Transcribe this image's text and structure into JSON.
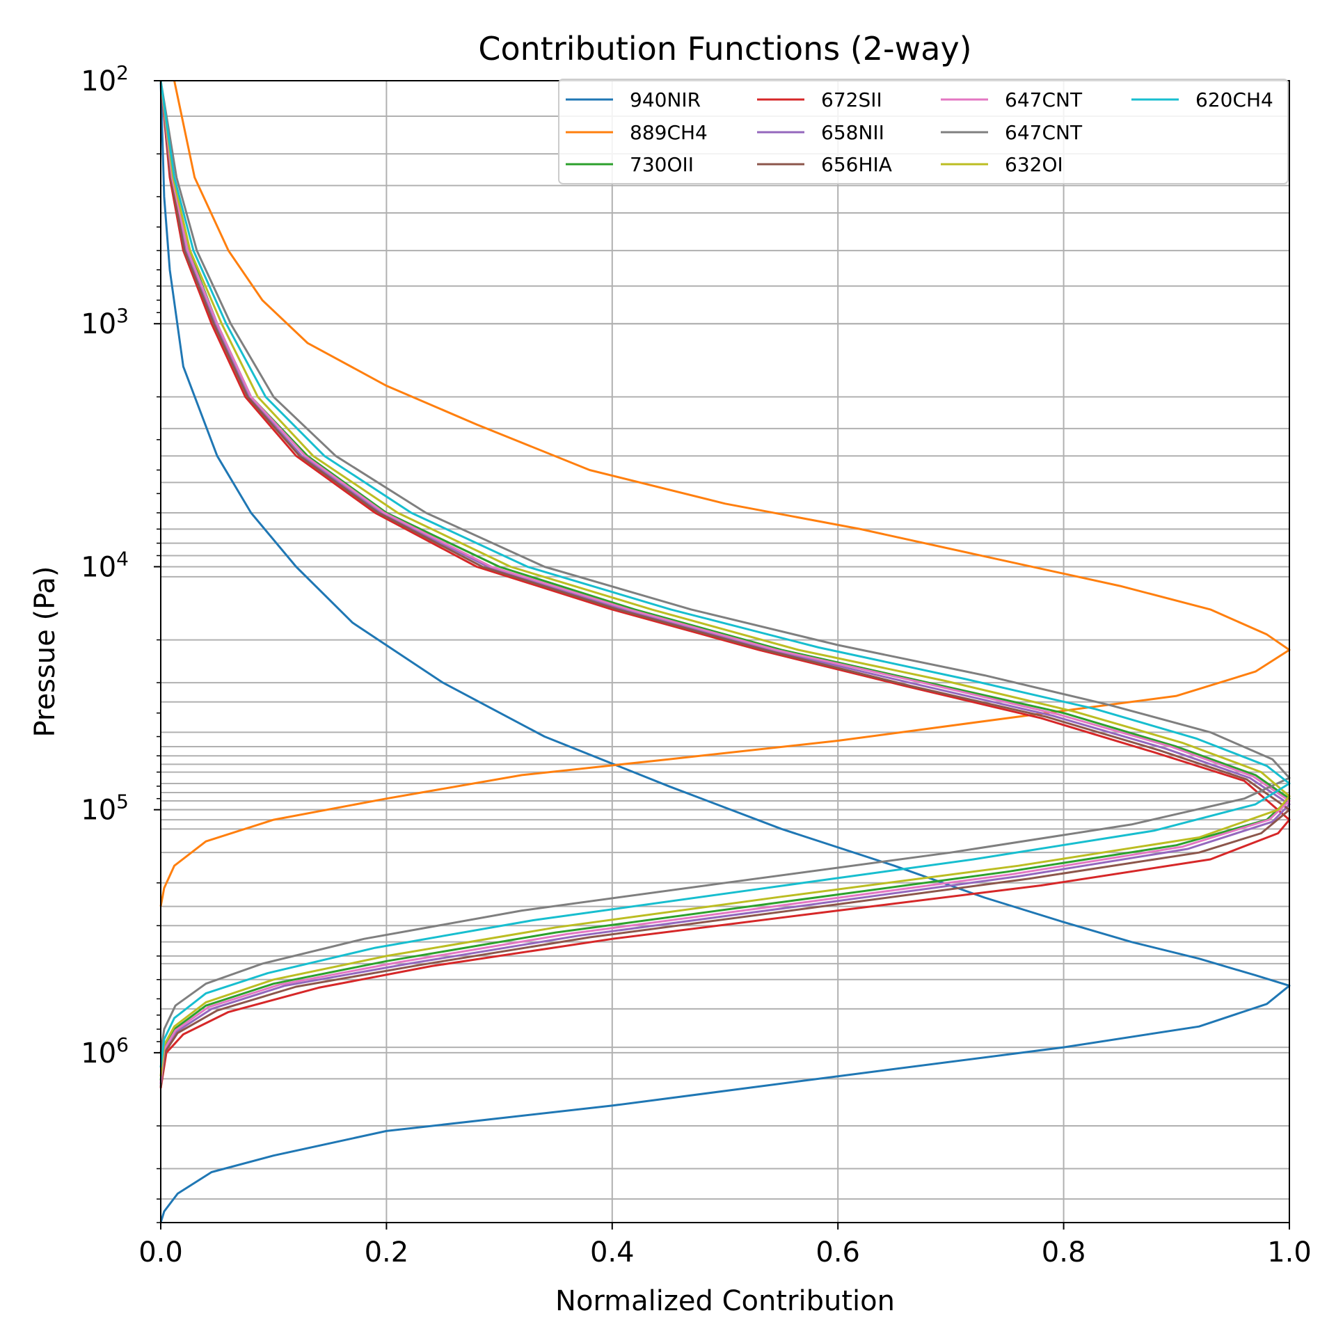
{
  "chart_data": {
    "type": "line",
    "title": "Contribution Functions (2-way)",
    "xlabel": "Normalized Contribution",
    "ylabel": "Pressue (Pa)",
    "xlim": [
      0.0,
      1.0
    ],
    "ylim": [
      100,
      5000000
    ],
    "yscale": "log",
    "y_inverted": true,
    "grid": true,
    "legend_position": "top-right",
    "legend_columns": 4,
    "x_ticks": [
      "0.0",
      "0.2",
      "0.4",
      "0.6",
      "0.8",
      "1.0"
    ],
    "y_ticks": [
      {
        "base": "10",
        "exp": "2",
        "value": 100
      },
      {
        "base": "10",
        "exp": "3",
        "value": 1000
      },
      {
        "base": "10",
        "exp": "4",
        "value": 10000
      },
      {
        "base": "10",
        "exp": "5",
        "value": 100000
      },
      {
        "base": "10",
        "exp": "6",
        "value": 1000000
      }
    ],
    "level_gridlines": [
      140,
      200,
      270,
      350,
      500,
      700,
      1000,
      2000,
      2700,
      3500,
      4500,
      6000,
      7000,
      8000,
      9000,
      11000,
      20000,
      30000,
      36000,
      48000,
      55000,
      60000,
      65000,
      70000,
      78000,
      85000,
      92000,
      100000,
      110000,
      120000,
      150000,
      200000,
      250000,
      300000,
      350000,
      400000,
      430000,
      500000,
      660000,
      950000,
      1280000,
      2000000,
      3000000,
      4000000
    ],
    "series": [
      {
        "name": "940NIR",
        "color": "#1f77b4",
        "points": [
          [
            0.0,
            100
          ],
          [
            0.003,
            300
          ],
          [
            0.008,
            600
          ],
          [
            0.02,
            1500
          ],
          [
            0.05,
            3500
          ],
          [
            0.08,
            6000
          ],
          [
            0.12,
            10000
          ],
          [
            0.17,
            17000
          ],
          [
            0.25,
            30000
          ],
          [
            0.34,
            50000
          ],
          [
            0.45,
            80000
          ],
          [
            0.55,
            120000
          ],
          [
            0.65,
            170000
          ],
          [
            0.73,
            230000
          ],
          [
            0.8,
            290000
          ],
          [
            0.86,
            350000
          ],
          [
            0.92,
            410000
          ],
          [
            0.97,
            480000
          ],
          [
            1.0,
            530000
          ],
          [
            0.98,
            630000
          ],
          [
            0.92,
            780000
          ],
          [
            0.8,
            950000
          ],
          [
            0.6,
            1250000
          ],
          [
            0.4,
            1650000
          ],
          [
            0.2,
            2100000
          ],
          [
            0.1,
            2650000
          ],
          [
            0.045,
            3100000
          ],
          [
            0.015,
            3800000
          ],
          [
            0.003,
            4500000
          ],
          [
            0.0,
            5000000
          ]
        ]
      },
      {
        "name": "889CH4",
        "color": "#ff7f0e",
        "points": [
          [
            0.012,
            100
          ],
          [
            0.03,
            250
          ],
          [
            0.06,
            500
          ],
          [
            0.09,
            800
          ],
          [
            0.13,
            1200
          ],
          [
            0.2,
            1800
          ],
          [
            0.28,
            2600
          ],
          [
            0.38,
            4000
          ],
          [
            0.5,
            5500
          ],
          [
            0.62,
            7000
          ],
          [
            0.75,
            9500
          ],
          [
            0.85,
            12000
          ],
          [
            0.93,
            15000
          ],
          [
            0.98,
            19000
          ],
          [
            1.0,
            22000
          ],
          [
            0.97,
            27000
          ],
          [
            0.9,
            34000
          ],
          [
            0.75,
            42000
          ],
          [
            0.6,
            52000
          ],
          [
            0.45,
            62000
          ],
          [
            0.32,
            72000
          ],
          [
            0.2,
            90000
          ],
          [
            0.1,
            110000
          ],
          [
            0.04,
            135000
          ],
          [
            0.012,
            170000
          ],
          [
            0.003,
            210000
          ],
          [
            0.0,
            250000
          ]
        ]
      },
      {
        "name": "730OII",
        "color": "#2ca02c",
        "points": [
          [
            0.0,
            100
          ],
          [
            0.01,
            250
          ],
          [
            0.025,
            500
          ],
          [
            0.05,
            1000
          ],
          [
            0.08,
            2000
          ],
          [
            0.13,
            3500
          ],
          [
            0.2,
            6000
          ],
          [
            0.3,
            10000
          ],
          [
            0.42,
            15000
          ],
          [
            0.55,
            22000
          ],
          [
            0.68,
            30000
          ],
          [
            0.8,
            40000
          ],
          [
            0.9,
            55000
          ],
          [
            0.97,
            72000
          ],
          [
            1.0,
            90000
          ],
          [
            0.98,
            110000
          ],
          [
            0.9,
            140000
          ],
          [
            0.75,
            180000
          ],
          [
            0.55,
            240000
          ],
          [
            0.35,
            320000
          ],
          [
            0.2,
            420000
          ],
          [
            0.1,
            520000
          ],
          [
            0.04,
            640000
          ],
          [
            0.012,
            800000
          ],
          [
            0.003,
            950000
          ],
          [
            0.0,
            1300000
          ]
        ]
      },
      {
        "name": "672SII",
        "color": "#d62728",
        "points": [
          [
            0.0,
            100
          ],
          [
            0.008,
            250
          ],
          [
            0.02,
            500
          ],
          [
            0.045,
            1000
          ],
          [
            0.075,
            2000
          ],
          [
            0.12,
            3500
          ],
          [
            0.19,
            6000
          ],
          [
            0.28,
            10000
          ],
          [
            0.4,
            15000
          ],
          [
            0.53,
            22000
          ],
          [
            0.66,
            31000
          ],
          [
            0.78,
            42000
          ],
          [
            0.88,
            58000
          ],
          [
            0.96,
            76000
          ],
          [
            1.0,
            110000
          ],
          [
            0.99,
            125000
          ],
          [
            0.93,
            160000
          ],
          [
            0.78,
            205000
          ],
          [
            0.6,
            260000
          ],
          [
            0.4,
            340000
          ],
          [
            0.24,
            440000
          ],
          [
            0.14,
            540000
          ],
          [
            0.06,
            680000
          ],
          [
            0.02,
            840000
          ],
          [
            0.005,
            1000000
          ],
          [
            0.0,
            1400000
          ]
        ]
      },
      {
        "name": "658NII",
        "color": "#9467bd",
        "points": [
          [
            0.0,
            100
          ],
          [
            0.009,
            250
          ],
          [
            0.022,
            500
          ],
          [
            0.048,
            1000
          ],
          [
            0.078,
            2000
          ],
          [
            0.125,
            3500
          ],
          [
            0.195,
            6000
          ],
          [
            0.29,
            10000
          ],
          [
            0.41,
            15000
          ],
          [
            0.54,
            22000
          ],
          [
            0.67,
            30500
          ],
          [
            0.79,
            41000
          ],
          [
            0.89,
            56000
          ],
          [
            0.965,
            74000
          ],
          [
            1.0,
            95000
          ],
          [
            0.985,
            112000
          ],
          [
            0.91,
            145000
          ],
          [
            0.76,
            188000
          ],
          [
            0.57,
            248000
          ],
          [
            0.37,
            330000
          ],
          [
            0.22,
            430000
          ],
          [
            0.11,
            530000
          ],
          [
            0.045,
            660000
          ],
          [
            0.014,
            820000
          ],
          [
            0.003,
            980000
          ],
          [
            0.0,
            1350000
          ]
        ]
      },
      {
        "name": "656HIA",
        "color": "#8c564b",
        "points": [
          [
            0.0,
            100
          ],
          [
            0.009,
            250
          ],
          [
            0.021,
            500
          ],
          [
            0.047,
            1000
          ],
          [
            0.077,
            2000
          ],
          [
            0.123,
            3500
          ],
          [
            0.193,
            6000
          ],
          [
            0.285,
            10000
          ],
          [
            0.405,
            15000
          ],
          [
            0.535,
            22000
          ],
          [
            0.665,
            31000
          ],
          [
            0.785,
            41500
          ],
          [
            0.885,
            57000
          ],
          [
            0.962,
            75000
          ],
          [
            1.0,
            100000
          ],
          [
            0.975,
            125000
          ],
          [
            0.92,
            150000
          ],
          [
            0.77,
            192000
          ],
          [
            0.58,
            252000
          ],
          [
            0.38,
            335000
          ],
          [
            0.23,
            435000
          ],
          [
            0.12,
            535000
          ],
          [
            0.05,
            670000
          ],
          [
            0.015,
            830000
          ],
          [
            0.004,
            990000
          ],
          [
            0.0,
            1380000
          ]
        ]
      },
      {
        "name": "647CNT",
        "color": "#e377c2",
        "points": [
          [
            0.0,
            100
          ],
          [
            0.01,
            250
          ],
          [
            0.024,
            500
          ],
          [
            0.05,
            1000
          ],
          [
            0.08,
            2000
          ],
          [
            0.128,
            3500
          ],
          [
            0.198,
            6000
          ],
          [
            0.293,
            10000
          ],
          [
            0.415,
            15000
          ],
          [
            0.545,
            22000
          ],
          [
            0.675,
            30000
          ],
          [
            0.795,
            40500
          ],
          [
            0.895,
            55000
          ],
          [
            0.968,
            73000
          ],
          [
            1.0,
            92000
          ],
          [
            0.982,
            110000
          ],
          [
            0.905,
            142000
          ],
          [
            0.755,
            184000
          ],
          [
            0.56,
            244000
          ],
          [
            0.36,
            325000
          ],
          [
            0.21,
            425000
          ],
          [
            0.105,
            525000
          ],
          [
            0.042,
            650000
          ],
          [
            0.013,
            810000
          ],
          [
            0.003,
            970000
          ],
          [
            0.0,
            1330000
          ]
        ]
      },
      {
        "name": "647CNT",
        "color": "#7f7f7f",
        "points": [
          [
            0.0,
            100
          ],
          [
            0.014,
            250
          ],
          [
            0.032,
            500
          ],
          [
            0.062,
            1000
          ],
          [
            0.1,
            2000
          ],
          [
            0.155,
            3500
          ],
          [
            0.235,
            6000
          ],
          [
            0.34,
            10000
          ],
          [
            0.47,
            15000
          ],
          [
            0.6,
            21000
          ],
          [
            0.73,
            28000
          ],
          [
            0.84,
            37000
          ],
          [
            0.93,
            48000
          ],
          [
            0.985,
            62000
          ],
          [
            1.0,
            74000
          ],
          [
            0.96,
            90000
          ],
          [
            0.86,
            115000
          ],
          [
            0.7,
            150000
          ],
          [
            0.5,
            200000
          ],
          [
            0.32,
            260000
          ],
          [
            0.18,
            340000
          ],
          [
            0.09,
            430000
          ],
          [
            0.04,
            520000
          ],
          [
            0.013,
            640000
          ],
          [
            0.003,
            800000
          ],
          [
            0.0,
            1000000
          ]
        ]
      },
      {
        "name": "632OI",
        "color": "#bcbd22",
        "points": [
          [
            0.0,
            100
          ],
          [
            0.011,
            250
          ],
          [
            0.026,
            500
          ],
          [
            0.054,
            1000
          ],
          [
            0.086,
            2000
          ],
          [
            0.135,
            3500
          ],
          [
            0.21,
            6000
          ],
          [
            0.31,
            10000
          ],
          [
            0.435,
            15000
          ],
          [
            0.565,
            22000
          ],
          [
            0.695,
            29500
          ],
          [
            0.81,
            39500
          ],
          [
            0.905,
            53000
          ],
          [
            0.975,
            70000
          ],
          [
            1.0,
            88000
          ],
          [
            0.99,
            100000
          ],
          [
            0.92,
            130000
          ],
          [
            0.76,
            170000
          ],
          [
            0.55,
            228000
          ],
          [
            0.35,
            305000
          ],
          [
            0.2,
            400000
          ],
          [
            0.1,
            500000
          ],
          [
            0.04,
            620000
          ],
          [
            0.012,
            780000
          ],
          [
            0.003,
            930000
          ],
          [
            0.0,
            1250000
          ]
        ]
      },
      {
        "name": "620CH4",
        "color": "#17becf",
        "points": [
          [
            0.0,
            100
          ],
          [
            0.012,
            250
          ],
          [
            0.029,
            500
          ],
          [
            0.058,
            1000
          ],
          [
            0.093,
            2000
          ],
          [
            0.145,
            3500
          ],
          [
            0.222,
            6000
          ],
          [
            0.325,
            10000
          ],
          [
            0.452,
            15000
          ],
          [
            0.583,
            21500
          ],
          [
            0.713,
            29000
          ],
          [
            0.828,
            38500
          ],
          [
            0.918,
            51000
          ],
          [
            0.98,
            66000
          ],
          [
            1.0,
            78000
          ],
          [
            0.97,
            95000
          ],
          [
            0.88,
            122000
          ],
          [
            0.72,
            160000
          ],
          [
            0.52,
            215000
          ],
          [
            0.33,
            285000
          ],
          [
            0.19,
            370000
          ],
          [
            0.095,
            470000
          ],
          [
            0.04,
            570000
          ],
          [
            0.012,
            720000
          ],
          [
            0.003,
            880000
          ],
          [
            0.0,
            1150000
          ]
        ]
      }
    ]
  }
}
